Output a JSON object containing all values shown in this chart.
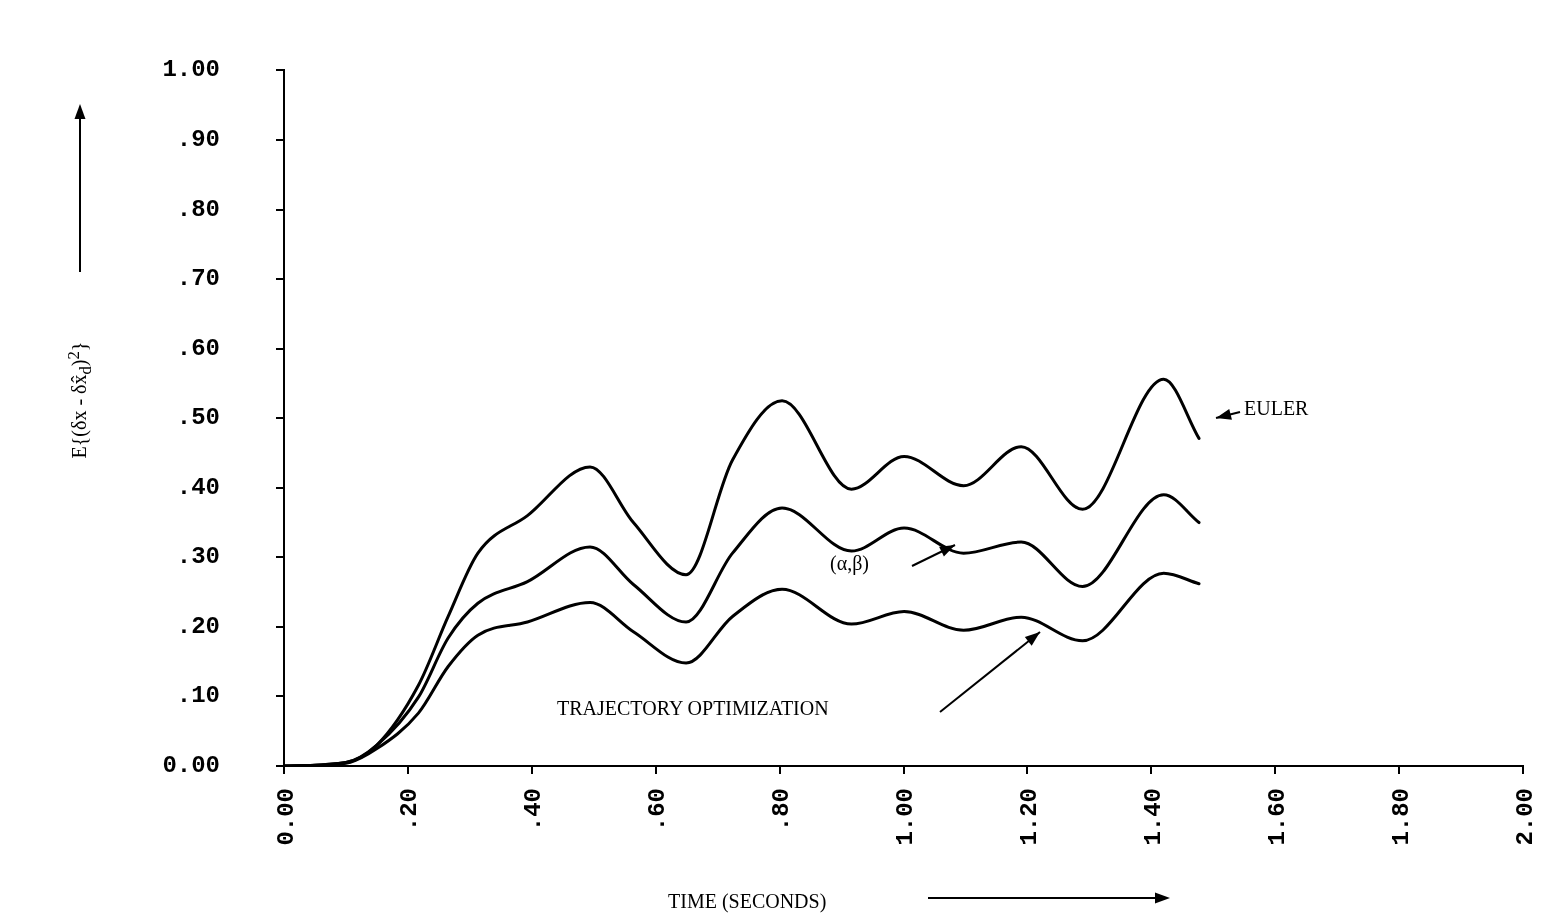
{
  "chart_data": {
    "type": "line",
    "xlabel": "TIME (SECONDS)",
    "ylabel": "E{(δx - δx̂$_{d}$)$^{2}$}",
    "marker": "none",
    "line_style": "solid",
    "x": [
      0,
      0.1,
      0.15,
      0.217,
      0.265,
      0.313,
      0.393,
      0.494,
      0.564,
      0.649,
      0.724,
      0.804,
      0.916,
      1.001,
      1.097,
      1.19,
      1.289,
      1.42,
      1.477
    ],
    "series": [
      {
        "name": "EULER",
        "color": "#000000",
        "values": [
          0,
          0.005,
          0.03,
          0.116,
          0.215,
          0.306,
          0.36,
          0.43,
          0.35,
          0.275,
          0.44,
          0.525,
          0.398,
          0.445,
          0.403,
          0.459,
          0.369,
          0.556,
          0.471
        ]
      },
      {
        "name": "(α,β)",
        "color": "#000000",
        "values": [
          0,
          0.005,
          0.03,
          0.099,
          0.184,
          0.234,
          0.265,
          0.315,
          0.261,
          0.207,
          0.306,
          0.371,
          0.309,
          0.342,
          0.306,
          0.322,
          0.258,
          0.39,
          0.35
        ]
      },
      {
        "name": "TRAJECTORY OPTIMIZATION",
        "color": "#000000",
        "values": [
          0,
          0.004,
          0.025,
          0.076,
          0.143,
          0.188,
          0.207,
          0.235,
          0.193,
          0.148,
          0.215,
          0.254,
          0.204,
          0.222,
          0.195,
          0.214,
          0.18,
          0.277,
          0.262
        ]
      }
    ],
    "xlim": [
      0,
      2
    ],
    "ylim": [
      0,
      1
    ],
    "xticks": [
      {
        "value": 0,
        "label": "0.00"
      },
      {
        "value": 0.2,
        "label": ".20"
      },
      {
        "value": 0.4,
        "label": ".40"
      },
      {
        "value": 0.6,
        "label": ".60"
      },
      {
        "value": 0.8,
        "label": ".80"
      },
      {
        "value": 1,
        "label": "1.00"
      },
      {
        "value": 1.2,
        "label": "1.20"
      },
      {
        "value": 1.4,
        "label": "1.40"
      },
      {
        "value": 1.6,
        "label": "1.60"
      },
      {
        "value": 1.8,
        "label": "1.80"
      },
      {
        "value": 2,
        "label": "2.00"
      }
    ],
    "yticks": [
      {
        "value": 0,
        "label": "0.00"
      },
      {
        "value": 0.1,
        "label": ".10"
      },
      {
        "value": 0.2,
        "label": ".20"
      },
      {
        "value": 0.3,
        "label": ".30"
      },
      {
        "value": 0.4,
        "label": ".40"
      },
      {
        "value": 0.5,
        "label": ".50"
      },
      {
        "value": 0.6,
        "label": ".60"
      },
      {
        "value": 0.7,
        "label": ".70"
      },
      {
        "value": 0.8,
        "label": ".80"
      },
      {
        "value": 0.9,
        "label": ".90"
      },
      {
        "value": 1,
        "label": "1.00"
      }
    ]
  }
}
